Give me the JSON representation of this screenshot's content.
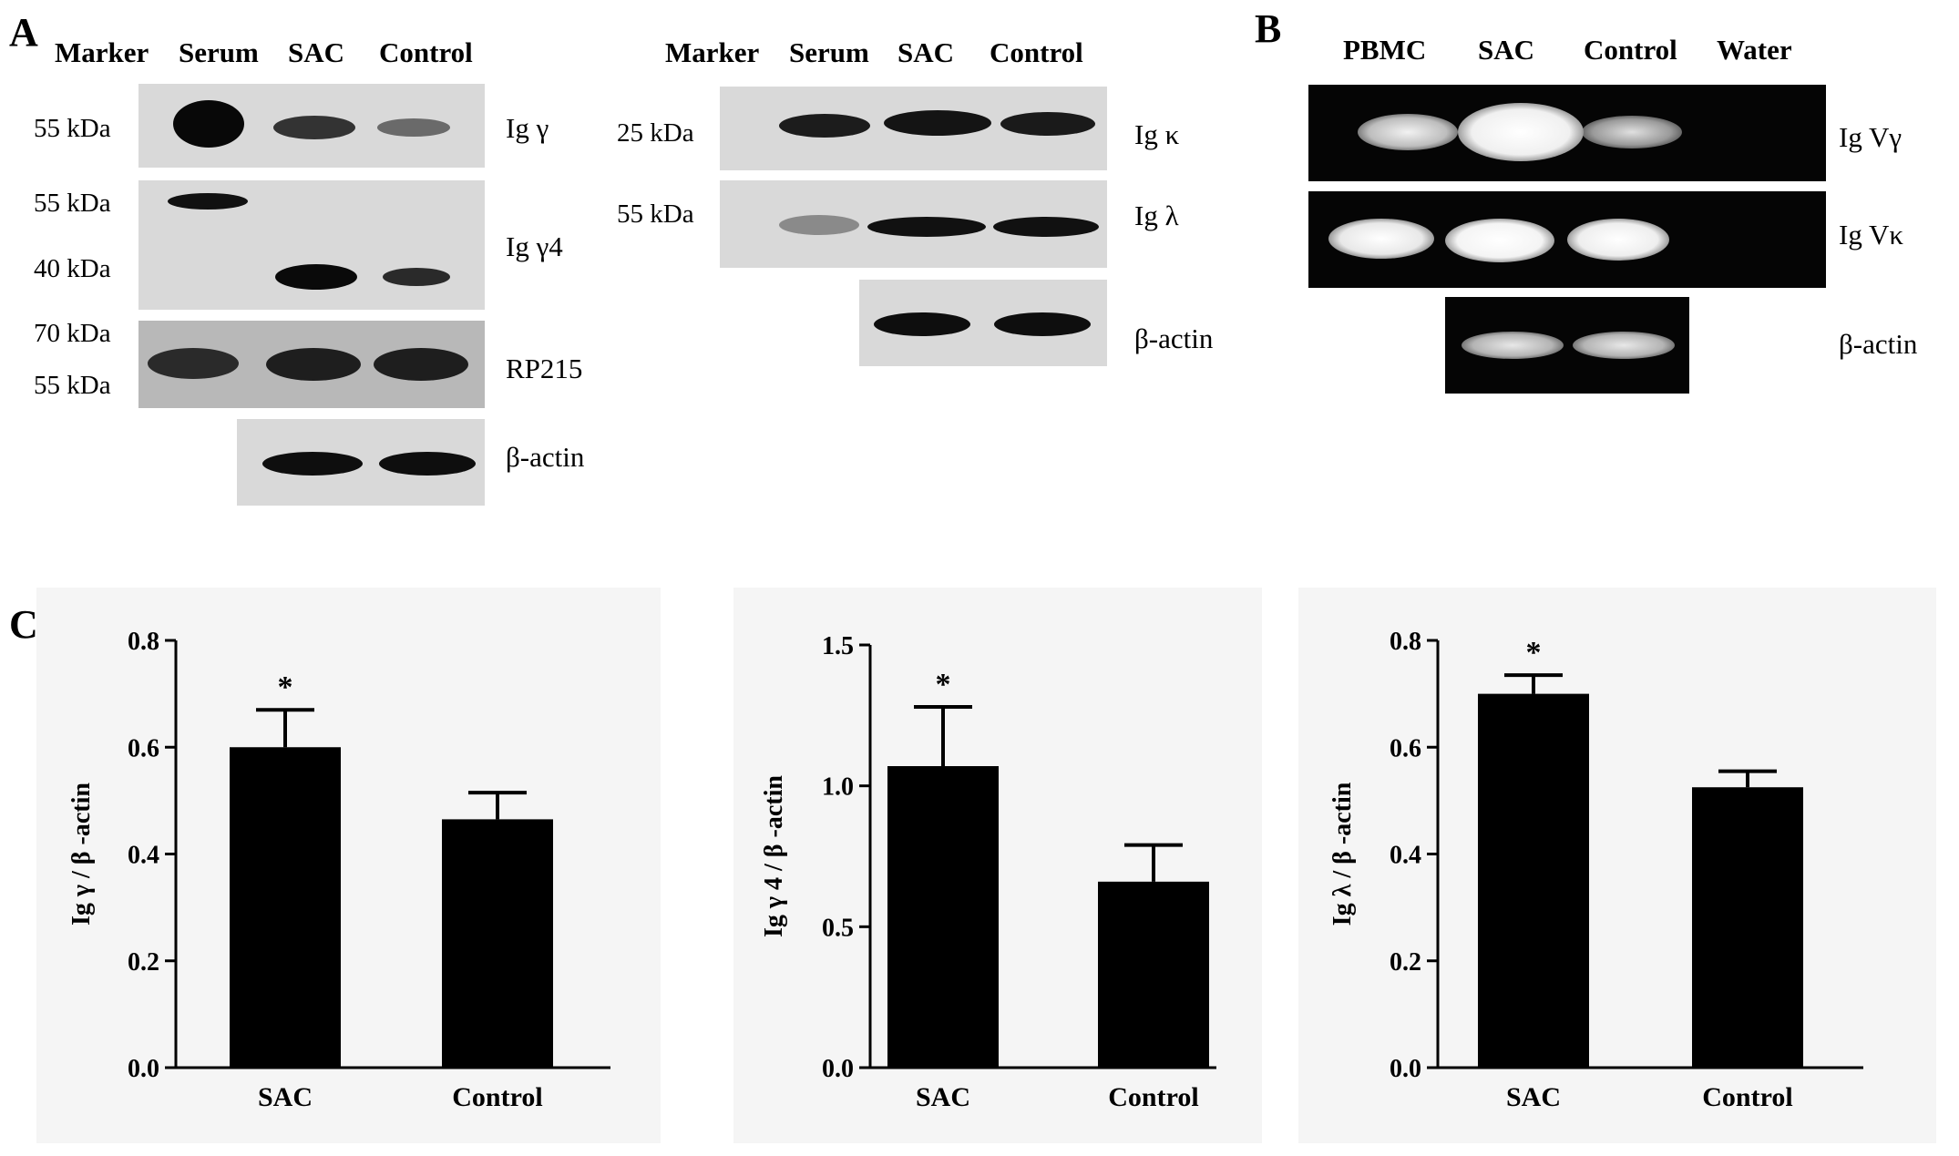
{
  "panel_a": {
    "letter": "A",
    "left_lanes": [
      "Marker",
      "Serum",
      "SAC",
      "Control"
    ],
    "right_lanes": [
      "Marker",
      "Serum",
      "SAC",
      "Control"
    ],
    "mw": {
      "m55a": "55 kDa",
      "m55b": "55 kDa",
      "m40": "40 kDa",
      "m70": "70 kDa",
      "m55c": "55 kDa",
      "m25": "25 kDa",
      "m55d": "55 kDa"
    },
    "labels": {
      "ig_gamma": "Ig γ",
      "ig_gamma4": "Ig γ4",
      "rp215": "RP215",
      "bactin_left": "β-actin",
      "ig_kappa": "Ig κ",
      "ig_lambda": "Ig λ",
      "bactin_right": "β-actin"
    }
  },
  "panel_b": {
    "letter": "B",
    "lanes": [
      "PBMC",
      "SAC",
      "Control",
      "Water"
    ],
    "labels": {
      "v_gamma": "Ig Vγ",
      "v_kappa": "Ig Vκ",
      "bactin": "β-actin"
    }
  },
  "panel_c": {
    "letter": "C"
  },
  "colors": {
    "bar": "#000000",
    "chart_bg": "#f5f5f5",
    "blot": "#d9d9d9",
    "gel": "#050505"
  },
  "chart_data": [
    {
      "type": "bar",
      "categories": [
        "SAC",
        "Control"
      ],
      "values": [
        0.6,
        0.465
      ],
      "errors": [
        0.07,
        0.05
      ],
      "ylabel": "Ig γ / β -actin",
      "ylim": [
        0,
        0.8
      ],
      "yticks": [
        "0.0",
        "0.2",
        "0.4",
        "0.6",
        "0.8"
      ],
      "annotation": "*",
      "annotation_category": "SAC"
    },
    {
      "type": "bar",
      "categories": [
        "SAC",
        "Control"
      ],
      "values": [
        1.07,
        0.66
      ],
      "errors": [
        0.21,
        0.13
      ],
      "ylabel": "Ig γ 4 / β -actin",
      "ylim": [
        0,
        1.5
      ],
      "yticks": [
        "0.0",
        "0.5",
        "1.0",
        "1.5"
      ],
      "annotation": "*",
      "annotation_category": "SAC"
    },
    {
      "type": "bar",
      "categories": [
        "SAC",
        "Control"
      ],
      "values": [
        0.7,
        0.525
      ],
      "errors": [
        0.035,
        0.03
      ],
      "ylabel": "Ig λ / β -actin",
      "ylim": [
        0,
        0.8
      ],
      "yticks": [
        "0.0",
        "0.2",
        "0.4",
        "0.6",
        "0.8"
      ],
      "annotation": "*",
      "annotation_category": "SAC"
    }
  ]
}
